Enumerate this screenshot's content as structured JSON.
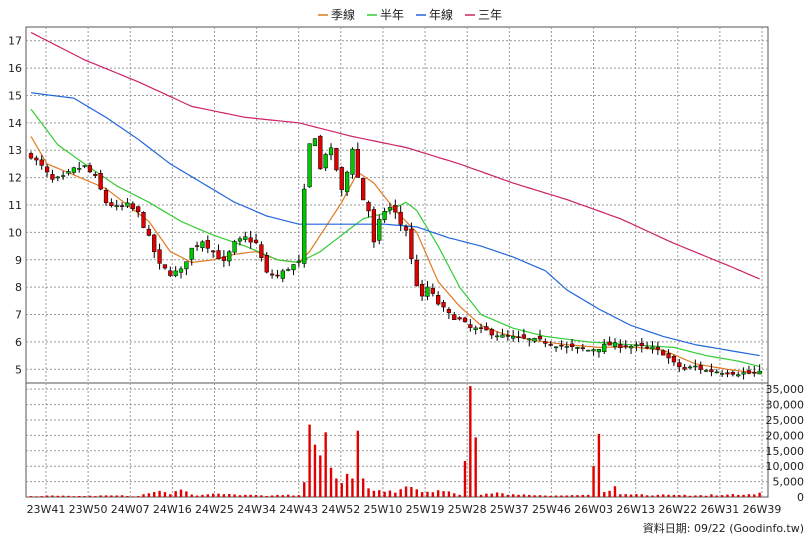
{
  "chart_data": {
    "type": "candlestick",
    "price_panel": {
      "ylim": [
        4.5,
        17.5
      ],
      "yticks": [
        "5",
        "6",
        "7",
        "8",
        "9",
        "10",
        "11",
        "12",
        "13",
        "14",
        "15",
        "16",
        "17"
      ],
      "grid": true
    },
    "volume_panel": {
      "ylim": [
        0,
        37000
      ],
      "yticks": [
        "0",
        "5,000",
        "10,000",
        "15,000",
        "20,000",
        "25,000",
        "30,000",
        "35,000"
      ],
      "grid": true
    },
    "xticks": [
      "23W41",
      "23W50",
      "24W07",
      "24W16",
      "24W25",
      "24W34",
      "24W43",
      "24W52",
      "25W10",
      "25W19",
      "25W28",
      "25W37",
      "25W46",
      "26W03",
      "26W13",
      "26W22",
      "26W31",
      "26W39"
    ],
    "legend": [
      {
        "name": "季線",
        "color": "#e07a20"
      },
      {
        "name": "半年",
        "color": "#33cc33"
      },
      {
        "name": "年線",
        "color": "#2266dd"
      },
      {
        "name": "三年",
        "color": "#cc2266"
      }
    ],
    "colors": {
      "up": "#00c800",
      "down": "#e00000",
      "volume": "#e00000",
      "wick": "#000000"
    },
    "close_anchors": [
      [
        0,
        12.8
      ],
      [
        2,
        12.4
      ],
      [
        4,
        11.9
      ],
      [
        6,
        12.0
      ],
      [
        8,
        12.3
      ],
      [
        10,
        12.4
      ],
      [
        12,
        12.0
      ],
      [
        14,
        11.1
      ],
      [
        16,
        10.9
      ],
      [
        18,
        11.0
      ],
      [
        20,
        10.7
      ],
      [
        22,
        9.8
      ],
      [
        24,
        8.8
      ],
      [
        26,
        8.5
      ],
      [
        28,
        8.6
      ],
      [
        30,
        9.4
      ],
      [
        32,
        9.7
      ],
      [
        34,
        9.3
      ],
      [
        36,
        8.9
      ],
      [
        38,
        9.6
      ],
      [
        40,
        9.8
      ],
      [
        42,
        9.6
      ],
      [
        44,
        8.5
      ],
      [
        46,
        8.4
      ],
      [
        48,
        8.7
      ],
      [
        50,
        8.9
      ],
      [
        51,
        11.5
      ],
      [
        52,
        13.2
      ],
      [
        53,
        13.5
      ],
      [
        54,
        12.3
      ],
      [
        55,
        12.9
      ],
      [
        56,
        13.0
      ],
      [
        57,
        12.3
      ],
      [
        58,
        11.5
      ],
      [
        59,
        12.2
      ],
      [
        60,
        13.1
      ],
      [
        61,
        12.0
      ],
      [
        62,
        11.2
      ],
      [
        63,
        10.8
      ],
      [
        64,
        9.6
      ],
      [
        65,
        10.4
      ],
      [
        66,
        10.8
      ],
      [
        67,
        10.9
      ],
      [
        68,
        10.7
      ],
      [
        69,
        10.3
      ],
      [
        70,
        10.1
      ],
      [
        71,
        9.0
      ],
      [
        72,
        8.1
      ],
      [
        73,
        7.6
      ],
      [
        74,
        8.0
      ],
      [
        76,
        7.4
      ],
      [
        78,
        7.0
      ],
      [
        80,
        6.8
      ],
      [
        82,
        6.5
      ],
      [
        85,
        6.4
      ],
      [
        88,
        6.2
      ],
      [
        92,
        6.1
      ],
      [
        96,
        6.0
      ],
      [
        100,
        5.8
      ],
      [
        104,
        5.7
      ],
      [
        108,
        5.9
      ],
      [
        112,
        5.85
      ],
      [
        116,
        5.75
      ],
      [
        118,
        5.6
      ],
      [
        120,
        5.2
      ],
      [
        122,
        5.0
      ],
      [
        124,
        5.1
      ],
      [
        126,
        4.95
      ],
      [
        130,
        4.9
      ],
      [
        134,
        4.85
      ],
      [
        136,
        4.85
      ]
    ],
    "volume_anchors": [
      [
        0,
        300
      ],
      [
        5,
        400
      ],
      [
        10,
        300
      ],
      [
        15,
        500
      ],
      [
        20,
        300
      ],
      [
        22,
        1200
      ],
      [
        24,
        2000
      ],
      [
        26,
        900
      ],
      [
        28,
        2400
      ],
      [
        30,
        800
      ],
      [
        32,
        700
      ],
      [
        36,
        900
      ],
      [
        40,
        700
      ],
      [
        45,
        500
      ],
      [
        50,
        600
      ],
      [
        51,
        4800
      ],
      [
        52,
        23500
      ],
      [
        53,
        17000
      ],
      [
        54,
        13500
      ],
      [
        55,
        21000
      ],
      [
        56,
        9500
      ],
      [
        57,
        6000
      ],
      [
        58,
        4500
      ],
      [
        59,
        7500
      ],
      [
        60,
        6000
      ],
      [
        61,
        21500
      ],
      [
        62,
        6000
      ],
      [
        63,
        2800
      ],
      [
        64,
        2000
      ],
      [
        66,
        1700
      ],
      [
        68,
        1400
      ],
      [
        70,
        3400
      ],
      [
        72,
        2500
      ],
      [
        74,
        1700
      ],
      [
        76,
        2200
      ],
      [
        78,
        1800
      ],
      [
        80,
        700
      ],
      [
        82,
        36000
      ],
      [
        84,
        700
      ],
      [
        86,
        1100
      ],
      [
        88,
        1200
      ],
      [
        90,
        900
      ],
      [
        95,
        600
      ],
      [
        100,
        500
      ],
      [
        104,
        700
      ],
      [
        106,
        20500
      ],
      [
        107,
        1600
      ],
      [
        108,
        2000
      ],
      [
        109,
        3500
      ],
      [
        110,
        900
      ],
      [
        112,
        800
      ],
      [
        116,
        500
      ],
      [
        120,
        700
      ],
      [
        125,
        600
      ],
      [
        130,
        800
      ],
      [
        134,
        900
      ],
      [
        136,
        1400
      ]
    ],
    "ma": {
      "quarter": [
        [
          0,
          13.5
        ],
        [
          3,
          12.5
        ],
        [
          8,
          12.1
        ],
        [
          14,
          11.6
        ],
        [
          18,
          11.0
        ],
        [
          22,
          10.4
        ],
        [
          26,
          9.3
        ],
        [
          30,
          8.9
        ],
        [
          34,
          9.0
        ],
        [
          38,
          9.2
        ],
        [
          42,
          9.3
        ],
        [
          46,
          9.0
        ],
        [
          50,
          8.9
        ],
        [
          52,
          9.3
        ],
        [
          55,
          10.2
        ],
        [
          58,
          11.1
        ],
        [
          61,
          12.2
        ],
        [
          64,
          11.8
        ],
        [
          68,
          10.8
        ],
        [
          72,
          10.0
        ],
        [
          76,
          8.2
        ],
        [
          80,
          7.3
        ],
        [
          84,
          6.6
        ],
        [
          88,
          6.3
        ],
        [
          94,
          6.05
        ],
        [
          100,
          5.9
        ],
        [
          106,
          5.8
        ],
        [
          112,
          5.82
        ],
        [
          118,
          5.7
        ],
        [
          124,
          5.2
        ],
        [
          130,
          5.0
        ],
        [
          136,
          4.85
        ]
      ],
      "half": [
        [
          0,
          14.5
        ],
        [
          5,
          13.2
        ],
        [
          10,
          12.5
        ],
        [
          16,
          11.7
        ],
        [
          22,
          11.1
        ],
        [
          28,
          10.4
        ],
        [
          34,
          9.9
        ],
        [
          40,
          9.5
        ],
        [
          46,
          9.0
        ],
        [
          50,
          8.9
        ],
        [
          54,
          9.3
        ],
        [
          58,
          9.9
        ],
        [
          62,
          10.5
        ],
        [
          66,
          10.7
        ],
        [
          70,
          11.1
        ],
        [
          72,
          10.8
        ],
        [
          76,
          9.5
        ],
        [
          80,
          8.0
        ],
        [
          84,
          7.0
        ],
        [
          90,
          6.5
        ],
        [
          96,
          6.2
        ],
        [
          104,
          6.0
        ],
        [
          112,
          5.9
        ],
        [
          120,
          5.8
        ],
        [
          126,
          5.5
        ],
        [
          132,
          5.3
        ],
        [
          136,
          5.1
        ]
      ],
      "year": [
        [
          0,
          15.1
        ],
        [
          8,
          14.9
        ],
        [
          14,
          14.2
        ],
        [
          20,
          13.4
        ],
        [
          26,
          12.5
        ],
        [
          32,
          11.8
        ],
        [
          38,
          11.1
        ],
        [
          44,
          10.6
        ],
        [
          50,
          10.3
        ],
        [
          58,
          10.3
        ],
        [
          66,
          10.3
        ],
        [
          72,
          10.2
        ],
        [
          78,
          9.8
        ],
        [
          84,
          9.5
        ],
        [
          90,
          9.1
        ],
        [
          96,
          8.6
        ],
        [
          100,
          7.9
        ],
        [
          106,
          7.2
        ],
        [
          112,
          6.6
        ],
        [
          118,
          6.2
        ],
        [
          124,
          5.9
        ],
        [
          130,
          5.7
        ],
        [
          136,
          5.5
        ]
      ],
      "three_year": [
        [
          0,
          17.3
        ],
        [
          10,
          16.3
        ],
        [
          20,
          15.5
        ],
        [
          30,
          14.6
        ],
        [
          40,
          14.2
        ],
        [
          50,
          14.0
        ],
        [
          60,
          13.5
        ],
        [
          70,
          13.1
        ],
        [
          80,
          12.5
        ],
        [
          90,
          11.8
        ],
        [
          100,
          11.2
        ],
        [
          110,
          10.5
        ],
        [
          120,
          9.6
        ],
        [
          130,
          8.8
        ],
        [
          136,
          8.3
        ]
      ]
    }
  },
  "source_text": "資料日期: 09/22 (Goodinfo.tw)"
}
